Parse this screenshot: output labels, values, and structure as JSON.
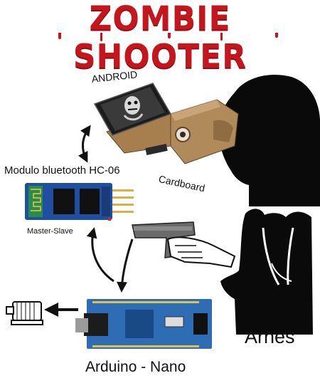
{
  "title": "ZOMBIE SHOOTER",
  "labels": {
    "android": "ANDROID",
    "bluetooth": "Modulo bluetooth HC-06",
    "master_slave": "Master-Slave",
    "cardboard": "Cardboard",
    "arnes": "Arnes",
    "arduino": "Arduino - Nano"
  },
  "colors": {
    "title_red": "#c4161c",
    "cardboard_brown": "#b08a5a",
    "arduino_blue": "#2e6db3",
    "bt_blue": "#1f4fa0",
    "silhouette": "#0a0a0a"
  },
  "icons": [
    "phone-icon",
    "cardboard-headset-icon",
    "head-silhouette-icon",
    "bluetooth-module-icon",
    "pistol-hand-icon",
    "vest-icon",
    "arduino-board-icon",
    "motor-icon"
  ]
}
